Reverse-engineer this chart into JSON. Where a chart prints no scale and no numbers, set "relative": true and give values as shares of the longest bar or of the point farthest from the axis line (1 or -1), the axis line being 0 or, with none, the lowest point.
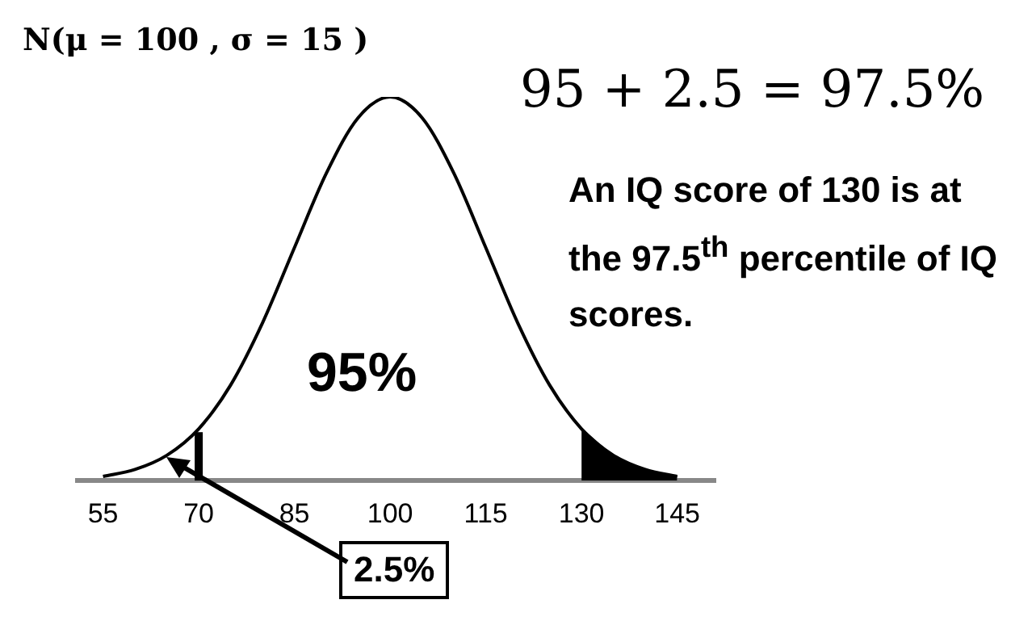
{
  "chart_data": {
    "type": "line",
    "title": "N(μ = 100 , σ = 15 )",
    "subtitle": "95 + 2.5 = 97.5%",
    "relative": true,
    "xlim": [
      51,
      151
    ],
    "xticks": [
      55,
      70,
      85,
      100,
      115,
      130,
      145
    ],
    "grid": false,
    "legend": false,
    "marker": "none",
    "line_style": "solid",
    "series": [
      {
        "color": "#000000",
        "x": [
          55,
          60,
          65,
          70,
          75,
          80,
          85,
          90,
          95,
          100,
          105,
          110,
          115,
          120,
          125,
          130,
          135,
          140,
          145
        ],
        "values": [
          0.011,
          0.029,
          0.066,
          0.135,
          0.249,
          0.411,
          0.607,
          0.801,
          0.946,
          1,
          0.946,
          0.801,
          0.607,
          0.411,
          0.249,
          0.135,
          0.066,
          0.029,
          0.011
        ]
      },
      {
        "type": "area",
        "color": "#000000",
        "x": [
          130,
          135,
          140,
          145
        ],
        "values": [
          0.135,
          0.066,
          0.029,
          0.011
        ]
      }
    ],
    "ref_lines": [
      {
        "axis": "x",
        "value": 70,
        "color": "#000000"
      }
    ],
    "annotations": [
      "95%",
      "2.5%",
      "An IQ score of 130 is at the 97.5$^{th}$ percentile of IQ scores."
    ]
  }
}
